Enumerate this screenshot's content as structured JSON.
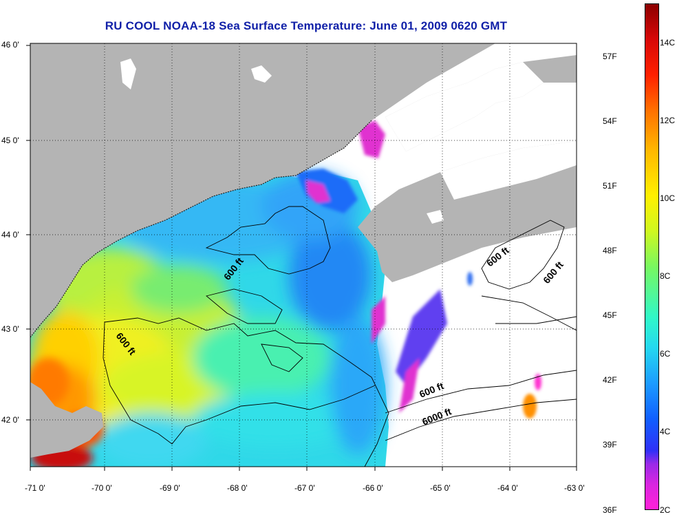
{
  "title": "RU COOL  NOAA-18  Sea Surface Temperature:  June 01, 2009 0620 GMT",
  "latitude_labels": [
    "46 0'",
    "45 0'",
    "44 0'",
    "43 0'",
    "42 0'"
  ],
  "longitude_labels": [
    "-71 0'",
    "-70 0'",
    "-69 0'",
    "-68 0'",
    "-67 0'",
    "-66 0'",
    "-65 0'",
    "-64 0'",
    "-63 0'"
  ],
  "contour_labels": [
    "600 ft",
    "600 ft",
    "600 ft",
    "600 ft",
    "600 ft",
    "6000 ft"
  ],
  "colorbar": {
    "fahrenheit_labels": [
      "57F",
      "54F",
      "51F",
      "48F",
      "45F",
      "42F",
      "39F",
      "36F"
    ],
    "celsius_labels": [
      "14C",
      "12C",
      "10C",
      "8C",
      "6C",
      "4C",
      "2C"
    ],
    "colors": [
      "#ff22d8",
      "#3030f8",
      "#1c9cff",
      "#30f8c8",
      "#fff000",
      "#ff7000",
      "#8c0000"
    ]
  },
  "colors": {
    "land": "#b4b4b4",
    "cloud": "#ffffff",
    "title": "#1020a8",
    "grid": "#000000"
  }
}
